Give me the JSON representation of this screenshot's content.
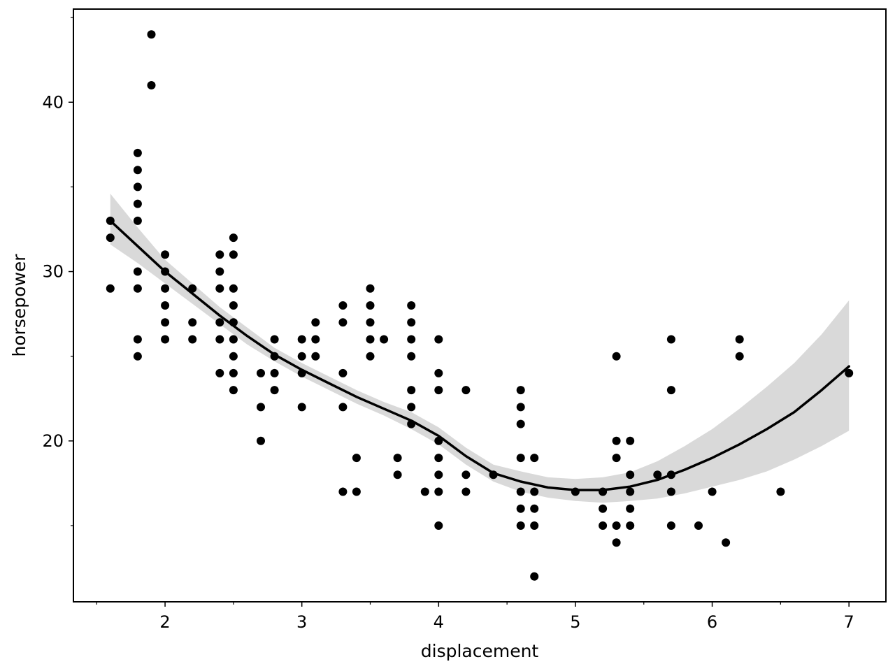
{
  "chart_data": {
    "type": "scatter",
    "xlabel": "displacement",
    "ylabel": "horsepower",
    "xlim": [
      1.33,
      7.27
    ],
    "ylim": [
      10.5,
      45.5
    ],
    "x_ticks": [
      2,
      3,
      4,
      5,
      6,
      7
    ],
    "x_minor_ticks": [
      1.5,
      2.5,
      3.5,
      4.5,
      5.5,
      6.5
    ],
    "y_ticks": [
      20,
      30,
      40
    ],
    "y_minor_ticks": [
      15,
      25,
      35,
      45
    ],
    "grid": false,
    "legend": "none",
    "colors": {
      "points": "#000000",
      "smooth_line": "#000000",
      "confidence_band": "#d9d9d9"
    },
    "points": [
      [
        1.6,
        33
      ],
      [
        1.6,
        32
      ],
      [
        1.6,
        29
      ],
      [
        1.8,
        37
      ],
      [
        1.8,
        36
      ],
      [
        1.8,
        35
      ],
      [
        1.8,
        34
      ],
      [
        1.8,
        33
      ],
      [
        1.8,
        30
      ],
      [
        1.8,
        29
      ],
      [
        1.8,
        26
      ],
      [
        1.8,
        25
      ],
      [
        1.9,
        44
      ],
      [
        1.9,
        41
      ],
      [
        2.0,
        31
      ],
      [
        2.0,
        30
      ],
      [
        2.0,
        29
      ],
      [
        2.0,
        28
      ],
      [
        2.0,
        27
      ],
      [
        2.0,
        26
      ],
      [
        2.2,
        29
      ],
      [
        2.2,
        27
      ],
      [
        2.2,
        26
      ],
      [
        2.4,
        31
      ],
      [
        2.4,
        30
      ],
      [
        2.4,
        29
      ],
      [
        2.4,
        27
      ],
      [
        2.4,
        26
      ],
      [
        2.4,
        24
      ],
      [
        2.5,
        32
      ],
      [
        2.5,
        31
      ],
      [
        2.5,
        29
      ],
      [
        2.5,
        28
      ],
      [
        2.5,
        27
      ],
      [
        2.5,
        26
      ],
      [
        2.5,
        25
      ],
      [
        2.5,
        24
      ],
      [
        2.5,
        23
      ],
      [
        2.7,
        24
      ],
      [
        2.7,
        22
      ],
      [
        2.7,
        20
      ],
      [
        2.8,
        26
      ],
      [
        2.8,
        25
      ],
      [
        2.8,
        24
      ],
      [
        2.8,
        23
      ],
      [
        3.0,
        26
      ],
      [
        3.0,
        25
      ],
      [
        3.0,
        24
      ],
      [
        3.0,
        22
      ],
      [
        3.1,
        27
      ],
      [
        3.1,
        26
      ],
      [
        3.1,
        25
      ],
      [
        3.3,
        28
      ],
      [
        3.3,
        27
      ],
      [
        3.3,
        24
      ],
      [
        3.3,
        22
      ],
      [
        3.3,
        17
      ],
      [
        3.4,
        19
      ],
      [
        3.4,
        17
      ],
      [
        3.5,
        29
      ],
      [
        3.5,
        28
      ],
      [
        3.5,
        27
      ],
      [
        3.5,
        26
      ],
      [
        3.5,
        25
      ],
      [
        3.6,
        26
      ],
      [
        3.7,
        19
      ],
      [
        3.7,
        18
      ],
      [
        3.8,
        28
      ],
      [
        3.8,
        27
      ],
      [
        3.8,
        26
      ],
      [
        3.8,
        25
      ],
      [
        3.8,
        23
      ],
      [
        3.8,
        22
      ],
      [
        3.8,
        21
      ],
      [
        3.9,
        17
      ],
      [
        4.0,
        26
      ],
      [
        4.0,
        24
      ],
      [
        4.0,
        23
      ],
      [
        4.0,
        20
      ],
      [
        4.0,
        19
      ],
      [
        4.0,
        18
      ],
      [
        4.0,
        17
      ],
      [
        4.0,
        15
      ],
      [
        4.2,
        23
      ],
      [
        4.2,
        18
      ],
      [
        4.2,
        17
      ],
      [
        4.4,
        18
      ],
      [
        4.6,
        23
      ],
      [
        4.6,
        22
      ],
      [
        4.6,
        21
      ],
      [
        4.6,
        19
      ],
      [
        4.6,
        17
      ],
      [
        4.6,
        16
      ],
      [
        4.6,
        15
      ],
      [
        4.7,
        19
      ],
      [
        4.7,
        17
      ],
      [
        4.7,
        16
      ],
      [
        4.7,
        15
      ],
      [
        4.7,
        12
      ],
      [
        5.0,
        17
      ],
      [
        5.2,
        17
      ],
      [
        5.2,
        16
      ],
      [
        5.2,
        15
      ],
      [
        5.3,
        25
      ],
      [
        5.3,
        20
      ],
      [
        5.3,
        19
      ],
      [
        5.3,
        15
      ],
      [
        5.3,
        14
      ],
      [
        5.4,
        20
      ],
      [
        5.4,
        18
      ],
      [
        5.4,
        17
      ],
      [
        5.4,
        16
      ],
      [
        5.4,
        15
      ],
      [
        5.6,
        18
      ],
      [
        5.7,
        26
      ],
      [
        5.7,
        23
      ],
      [
        5.7,
        18
      ],
      [
        5.7,
        17
      ],
      [
        5.7,
        15
      ],
      [
        5.9,
        15
      ],
      [
        6.0,
        17
      ],
      [
        6.1,
        14
      ],
      [
        6.2,
        26
      ],
      [
        6.2,
        25
      ],
      [
        6.5,
        17
      ],
      [
        7.0,
        24
      ]
    ],
    "smooth": {
      "x": [
        1.6,
        1.8,
        2.0,
        2.2,
        2.4,
        2.6,
        2.8,
        3.0,
        3.2,
        3.4,
        3.6,
        3.8,
        4.0,
        4.2,
        4.4,
        4.6,
        4.8,
        5.0,
        5.2,
        5.4,
        5.6,
        5.8,
        6.0,
        6.2,
        6.4,
        6.6,
        6.8,
        7.0
      ],
      "y": [
        33.0,
        31.5,
        30.0,
        28.7,
        27.4,
        26.2,
        25.1,
        24.2,
        23.4,
        22.6,
        21.9,
        21.2,
        20.3,
        19.1,
        18.1,
        17.6,
        17.25,
        17.1,
        17.1,
        17.3,
        17.7,
        18.3,
        19.0,
        19.8,
        20.7,
        21.7,
        23.0,
        24.4
      ],
      "lower": [
        31.6,
        30.5,
        29.3,
        28.1,
        26.9,
        25.7,
        24.7,
        23.8,
        23.0,
        22.2,
        21.5,
        20.7,
        19.8,
        18.6,
        17.6,
        17.0,
        16.65,
        16.45,
        16.35,
        16.45,
        16.6,
        16.9,
        17.3,
        17.7,
        18.2,
        18.9,
        19.7,
        20.6
      ],
      "upper": [
        34.6,
        32.6,
        30.7,
        29.3,
        27.9,
        26.7,
        25.5,
        24.6,
        23.8,
        23.0,
        22.3,
        21.7,
        20.8,
        19.6,
        18.6,
        18.2,
        17.85,
        17.75,
        17.85,
        18.15,
        18.8,
        19.7,
        20.7,
        21.9,
        23.2,
        24.6,
        26.3,
        28.3
      ]
    }
  }
}
